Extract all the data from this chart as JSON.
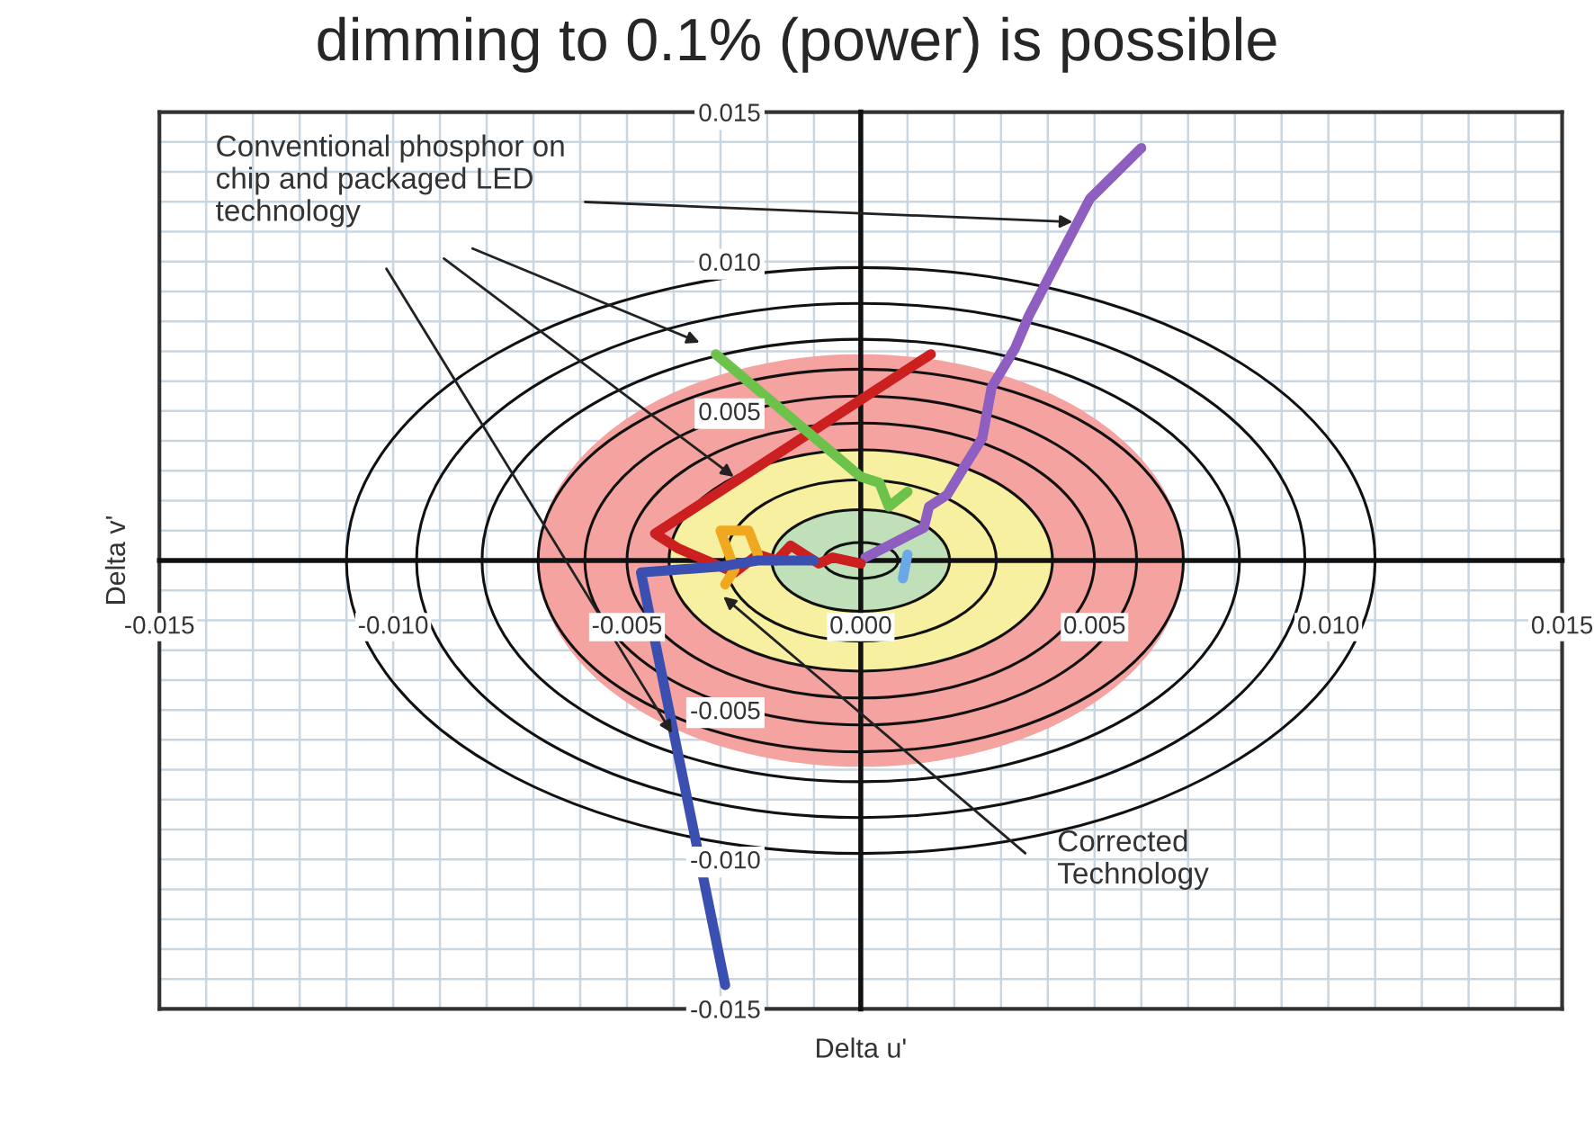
{
  "chart_data": {
    "type": "line",
    "title": "dimming to 0.1% (power) is possible",
    "xlabel": "Delta u'",
    "ylabel": "Delta v'",
    "xlim": [
      -0.015,
      0.015
    ],
    "ylim": [
      -0.015,
      0.015
    ],
    "xticks": [
      {
        "value": -0.015,
        "label": "-0.015"
      },
      {
        "value": -0.01,
        "label": "-0.010"
      },
      {
        "value": -0.005,
        "label": "-0.005"
      },
      {
        "value": 0,
        "label": "0.000"
      },
      {
        "value": 0.005,
        "label": "0.005"
      },
      {
        "value": 0.01,
        "label": "0.010"
      },
      {
        "value": 0.015,
        "label": "0.015"
      }
    ],
    "yticks": [
      {
        "value": -0.015,
        "label": "-0.015"
      },
      {
        "value": -0.01,
        "label": "-0.010"
      },
      {
        "value": -0.005,
        "label": "-0.005"
      },
      {
        "value": 0,
        "label": null
      },
      {
        "value": 0.005,
        "label": "0.005"
      },
      {
        "value": 0.01,
        "label": "0.010"
      },
      {
        "value": 0.015,
        "label": "0.015"
      }
    ],
    "grid": true,
    "series": [
      {
        "color": "#8e5fc0",
        "x": [
          0.0001,
          0.00085,
          0.00135,
          0.00146,
          0.00185,
          0.0022,
          0.0026,
          0.0028,
          0.0033,
          0.0036,
          0.0049,
          0.006
        ],
        "values": [
          0.0001,
          0.0007,
          0.0011,
          0.0018,
          0.0022,
          0.0031,
          0.0041,
          0.0058,
          0.0071,
          0.0082,
          0.0121,
          0.0138
        ]
      },
      {
        "color": "#cc1f1f",
        "x": [
          0.0,
          -0.0006,
          -0.0009,
          -0.0015,
          -0.0018,
          -0.0022,
          -0.0027,
          -0.0039,
          -0.0044,
          0.0015
        ],
        "values": [
          -0.0001,
          0.0001,
          -0.0001,
          0.0005,
          0.0,
          0.0002,
          -0.0004,
          0.0004,
          0.0009,
          0.0069
        ]
      },
      {
        "color": "#6cc24a",
        "x": [
          -0.0031,
          0.0,
          0.0004,
          0.0006,
          0.001
        ],
        "values": [
          0.0069,
          0.0028,
          0.0026,
          0.0018,
          0.0023
        ]
      },
      {
        "color": "#f0a820",
        "x": [
          -0.0029,
          -0.0027,
          -0.003,
          -0.0024,
          -0.0022
        ],
        "values": [
          -0.0008,
          -0.0003,
          0.001,
          0.001,
          0.0002
        ]
      },
      {
        "color": "#3a4fb0",
        "x": [
          -0.001,
          -0.0022,
          -0.003,
          -0.0047,
          -0.0029
        ],
        "values": [
          0.0,
          0.0,
          -0.0002,
          -0.0004,
          -0.0142
        ]
      },
      {
        "color": "#6aa8e8",
        "x": [
          0.001,
          0.0009
        ],
        "values": [
          0.0002,
          -0.0006
        ]
      }
    ],
    "annotations": [
      "Conventional phosphor on\nchip and packaged LED\ntechnology",
      "Corrected\nTechnology"
    ]
  }
}
